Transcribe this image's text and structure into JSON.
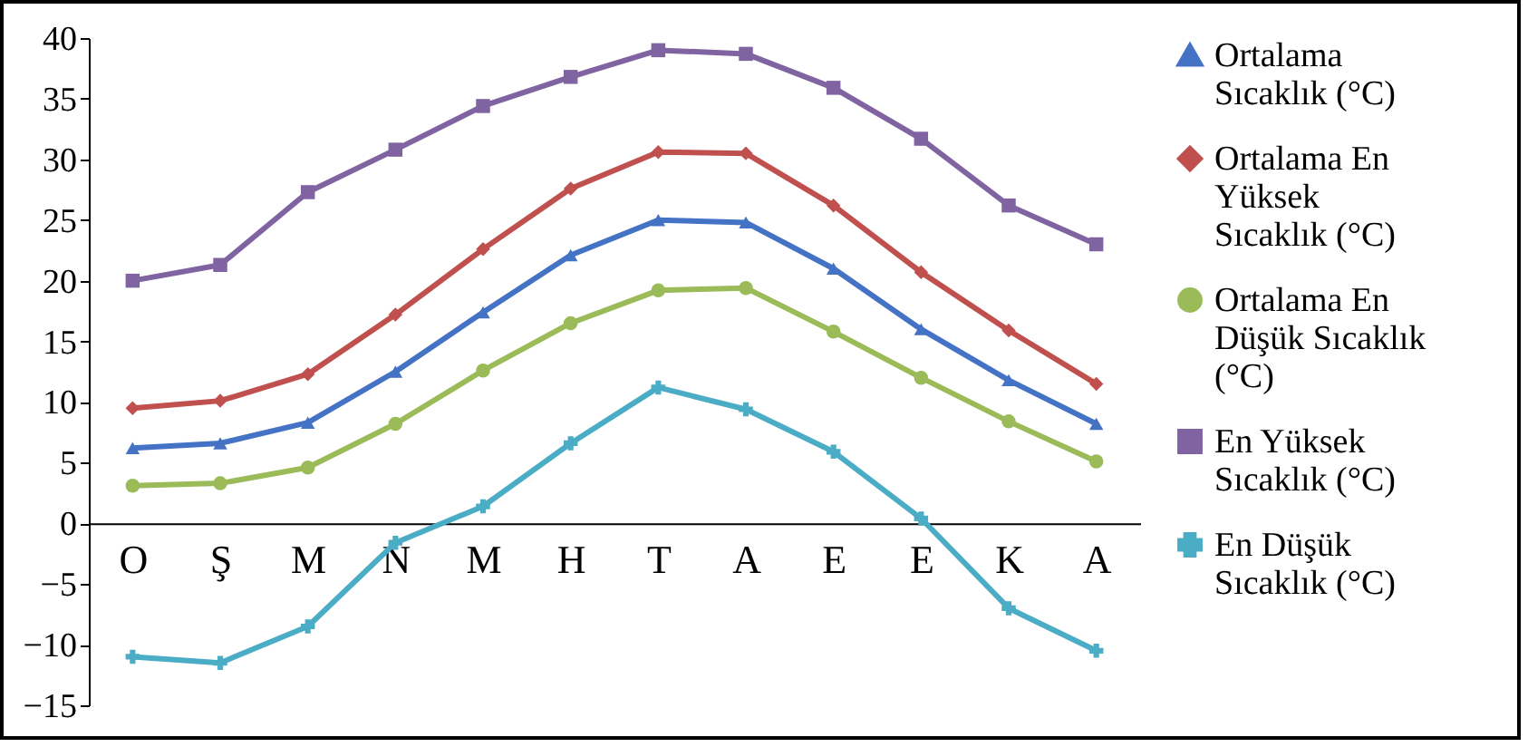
{
  "chart_data": {
    "type": "line",
    "categories": [
      "O",
      "Ş",
      "M",
      "N",
      "M",
      "H",
      "T",
      "A",
      "E",
      "E",
      "K",
      "A"
    ],
    "ylim": [
      -15,
      40
    ],
    "yticks": [
      -15,
      -10,
      -5,
      0,
      5,
      10,
      15,
      20,
      25,
      30,
      35,
      40
    ],
    "grid": false,
    "legend": "right",
    "line_style": "solid",
    "series": [
      {
        "name": "Ortalama Sıcaklık (°C)",
        "color": "#4472c4",
        "marker": "triangle",
        "values": [
          6.2,
          6.6,
          8.3,
          12.5,
          17.4,
          22.1,
          25.0,
          24.8,
          21.0,
          16.0,
          11.8,
          8.2
        ]
      },
      {
        "name": "Ortalama En Yüksek Sıcaklık (°C)",
        "color": "#c0504d",
        "marker": "diamond",
        "values": [
          9.5,
          10.1,
          12.3,
          17.2,
          22.6,
          27.6,
          30.6,
          30.5,
          26.2,
          20.7,
          15.9,
          11.5
        ]
      },
      {
        "name": "Ortalama En Düşük Sıcaklık (°C)",
        "color": "#9bbb59",
        "marker": "circle",
        "values": [
          3.1,
          3.3,
          4.6,
          8.2,
          12.6,
          16.5,
          19.2,
          19.4,
          15.8,
          12.0,
          8.4,
          5.1
        ]
      },
      {
        "name": "En Yüksek Sıcaklık (°C)",
        "color": "#8064a2",
        "marker": "square",
        "values": [
          20.0,
          21.3,
          27.3,
          30.8,
          34.4,
          36.8,
          39.0,
          38.7,
          35.9,
          31.7,
          26.2,
          23.0
        ]
      },
      {
        "name": "En Düşük Sıcaklık (°C)",
        "color": "#4bacc6",
        "marker": "cross",
        "values": [
          -11.0,
          -11.5,
          -8.5,
          -1.6,
          1.4,
          6.6,
          11.2,
          9.4,
          5.9,
          0.4,
          -7.0,
          -10.5
        ]
      }
    ]
  }
}
